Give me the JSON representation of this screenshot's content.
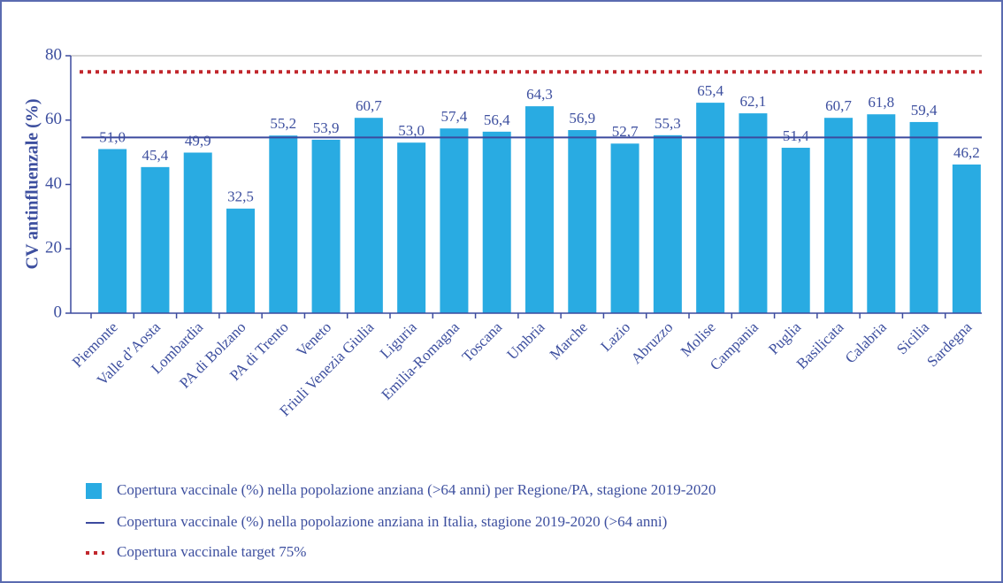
{
  "chart_data": {
    "type": "bar",
    "y_label": "CV antinfluenzale (%)",
    "categories": [
      "Piemonte",
      "Valle d’Aosta",
      "Lombardia",
      "PA di Bolzano",
      "PA di Trento",
      "Veneto",
      "Friuli Venezia Giulia",
      "Liguria",
      "Emilia-Romagna",
      "Toscana",
      "Umbria",
      "Marche",
      "Lazio",
      "Abruzzo",
      "Molise",
      "Campania",
      "Puglia",
      "Basilicata",
      "Calabria",
      "Sicilia",
      "Sardegna"
    ],
    "series": [
      {
        "name": "Copertura vaccinale (%) nella popolazione anziana (>64 anni) per Regione/PA, stagione 2019-2020",
        "color": "#29abe2",
        "values": [
          51.0,
          45.4,
          49.9,
          32.5,
          55.2,
          53.9,
          60.7,
          53.0,
          57.4,
          56.4,
          64.3,
          56.9,
          52.7,
          55.3,
          65.4,
          62.1,
          51.4,
          60.7,
          61.8,
          59.4,
          46.2
        ],
        "value_labels": [
          "51,0",
          "45,4",
          "49,9",
          "32,5",
          "55,2",
          "53,9",
          "60,7",
          "53,0",
          "57,4",
          "56,4",
          "64,3",
          "56,9",
          "52,7",
          "55,3",
          "65,4",
          "62,1",
          "51,4",
          "60,7",
          "61,8",
          "59,4",
          "46,2"
        ]
      }
    ],
    "reference_lines": [
      {
        "name": "Copertura vaccinale (%) nella popolazione anziana in Italia, stagione 2019-2020 (>64 anni)",
        "value": 54.6,
        "color": "#3c4a9e",
        "style": "solid"
      },
      {
        "name": "Copertura vaccinale target 75%",
        "value": 75,
        "color": "#c1272d",
        "style": "dotted"
      }
    ],
    "ylim": [
      0,
      80
    ],
    "yticks": [
      0,
      20,
      40,
      60,
      80
    ],
    "grid": false
  }
}
